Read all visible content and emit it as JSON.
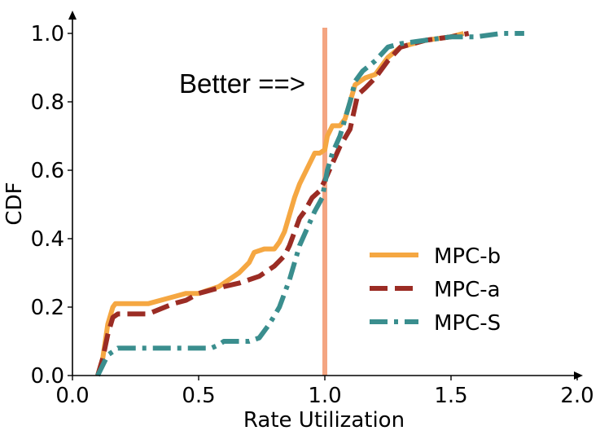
{
  "chart_data": {
    "type": "line",
    "title": "",
    "xlabel": "Rate Utilization",
    "ylabel": "CDF",
    "xlim": [
      0.0,
      2.0
    ],
    "ylim": [
      0.0,
      1.0
    ],
    "x_ticks": [
      "0.0",
      "0.5",
      "1.0",
      "1.5",
      "2.0"
    ],
    "y_ticks": [
      "0.0",
      "0.2",
      "0.4",
      "0.6",
      "0.8",
      "1.0"
    ],
    "x_tick_values": [
      0.0,
      0.5,
      1.0,
      1.5,
      2.0
    ],
    "y_tick_values": [
      0.0,
      0.2,
      0.4,
      0.6,
      0.8,
      1.0
    ],
    "grid": false,
    "legend_position": "lower-right",
    "annotation": {
      "text": "Better ==>",
      "reference_line_x": 1.0,
      "reference_line_color": "#F4A582"
    },
    "series": [
      {
        "name": "MPC-b",
        "color": "#F5A742",
        "dash": "solid",
        "x": [
          0.1,
          0.12,
          0.14,
          0.16,
          0.17,
          0.22,
          0.3,
          0.4,
          0.45,
          0.5,
          0.58,
          0.62,
          0.66,
          0.7,
          0.72,
          0.76,
          0.8,
          0.82,
          0.84,
          0.86,
          0.88,
          0.9,
          0.92,
          0.94,
          0.96,
          0.98,
          1.0,
          1.01,
          1.03,
          1.06,
          1.08,
          1.1,
          1.12,
          1.16,
          1.2,
          1.25,
          1.3,
          1.4,
          1.5,
          1.55
        ],
        "y": [
          0.0,
          0.05,
          0.15,
          0.2,
          0.21,
          0.21,
          0.21,
          0.23,
          0.24,
          0.24,
          0.26,
          0.28,
          0.3,
          0.33,
          0.36,
          0.37,
          0.37,
          0.39,
          0.42,
          0.47,
          0.52,
          0.56,
          0.59,
          0.62,
          0.65,
          0.65,
          0.66,
          0.7,
          0.73,
          0.73,
          0.75,
          0.8,
          0.85,
          0.87,
          0.88,
          0.93,
          0.96,
          0.98,
          0.99,
          1.0
        ]
      },
      {
        "name": "MPC-a",
        "color": "#9B2C24",
        "dash": "dashed",
        "x": [
          0.1,
          0.12,
          0.14,
          0.16,
          0.18,
          0.22,
          0.3,
          0.4,
          0.45,
          0.5,
          0.55,
          0.6,
          0.66,
          0.7,
          0.74,
          0.8,
          0.84,
          0.86,
          0.88,
          0.9,
          0.92,
          0.95,
          0.98,
          1.0,
          1.03,
          1.06,
          1.1,
          1.13,
          1.16,
          1.2,
          1.25,
          1.3,
          1.4,
          1.5,
          1.57
        ],
        "y": [
          0.0,
          0.05,
          0.12,
          0.17,
          0.18,
          0.18,
          0.18,
          0.21,
          0.22,
          0.24,
          0.25,
          0.26,
          0.27,
          0.28,
          0.29,
          0.32,
          0.35,
          0.38,
          0.42,
          0.46,
          0.48,
          0.52,
          0.54,
          0.57,
          0.62,
          0.67,
          0.72,
          0.82,
          0.84,
          0.87,
          0.92,
          0.96,
          0.98,
          0.99,
          1.0
        ]
      },
      {
        "name": "MPC-S",
        "color": "#3A8E8E",
        "dash": "dashdot",
        "x": [
          0.1,
          0.12,
          0.14,
          0.18,
          0.25,
          0.35,
          0.45,
          0.55,
          0.58,
          0.6,
          0.7,
          0.74,
          0.78,
          0.82,
          0.84,
          0.86,
          0.88,
          0.9,
          0.93,
          0.96,
          0.99,
          1.01,
          1.03,
          1.06,
          1.08,
          1.1,
          1.12,
          1.15,
          1.2,
          1.25,
          1.3,
          1.4,
          1.5,
          1.6,
          1.7,
          1.79
        ],
        "y": [
          0.0,
          0.03,
          0.06,
          0.08,
          0.08,
          0.08,
          0.08,
          0.08,
          0.09,
          0.1,
          0.1,
          0.11,
          0.15,
          0.2,
          0.24,
          0.28,
          0.33,
          0.38,
          0.43,
          0.48,
          0.52,
          0.6,
          0.65,
          0.7,
          0.75,
          0.8,
          0.86,
          0.89,
          0.92,
          0.96,
          0.97,
          0.98,
          0.99,
          0.99,
          1.0,
          1.0
        ]
      }
    ]
  }
}
